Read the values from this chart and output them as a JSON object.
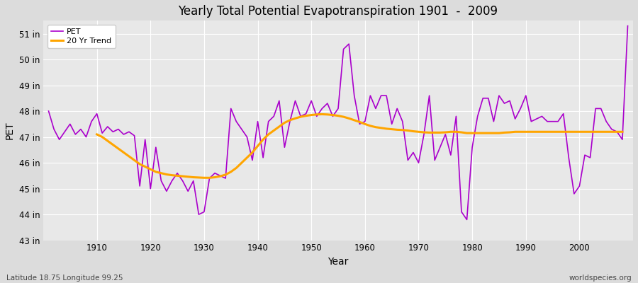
{
  "title": "Yearly Total Potential Evapotranspiration 1901  -  2009",
  "xlabel": "Year",
  "ylabel": "PET",
  "subtitle_left": "Latitude 18.75 Longitude 99.25",
  "subtitle_right": "worldspecies.org",
  "pet_color": "#aa00cc",
  "trend_color": "#ffa500",
  "background_color": "#dcdcdc",
  "plot_bg_color": "#e8e8e8",
  "ylim": [
    43.0,
    51.5
  ],
  "yticks": [
    43,
    44,
    45,
    46,
    47,
    48,
    49,
    50,
    51
  ],
  "xlim": [
    1900,
    2010
  ],
  "xticks": [
    1910,
    1920,
    1930,
    1940,
    1950,
    1960,
    1970,
    1980,
    1990,
    2000
  ],
  "years": [
    1901,
    1902,
    1903,
    1904,
    1905,
    1906,
    1907,
    1908,
    1909,
    1910,
    1911,
    1912,
    1913,
    1914,
    1915,
    1916,
    1917,
    1918,
    1919,
    1920,
    1921,
    1922,
    1923,
    1924,
    1925,
    1926,
    1927,
    1928,
    1929,
    1930,
    1931,
    1932,
    1933,
    1934,
    1935,
    1936,
    1937,
    1938,
    1939,
    1940,
    1941,
    1942,
    1943,
    1944,
    1945,
    1946,
    1947,
    1948,
    1949,
    1950,
    1951,
    1952,
    1953,
    1954,
    1955,
    1956,
    1957,
    1958,
    1959,
    1960,
    1961,
    1962,
    1963,
    1964,
    1965,
    1966,
    1967,
    1968,
    1969,
    1970,
    1971,
    1972,
    1973,
    1974,
    1975,
    1976,
    1977,
    1978,
    1979,
    1980,
    1981,
    1982,
    1983,
    1984,
    1985,
    1986,
    1987,
    1988,
    1989,
    1990,
    1991,
    1992,
    1993,
    1994,
    1995,
    1996,
    1997,
    1998,
    1999,
    2000,
    2001,
    2002,
    2003,
    2004,
    2005,
    2006,
    2007,
    2008,
    2009
  ],
  "pet_values": [
    48.0,
    47.3,
    46.9,
    47.2,
    47.5,
    47.1,
    47.3,
    47.0,
    47.6,
    47.9,
    47.15,
    47.4,
    47.2,
    47.3,
    47.1,
    47.2,
    47.05,
    45.1,
    46.9,
    45.0,
    46.6,
    45.3,
    44.9,
    45.3,
    45.6,
    45.3,
    44.9,
    45.3,
    44.0,
    44.1,
    45.4,
    45.6,
    45.5,
    45.4,
    48.1,
    47.6,
    47.3,
    47.0,
    46.1,
    47.6,
    46.2,
    47.6,
    47.8,
    48.4,
    46.6,
    47.6,
    48.4,
    47.8,
    47.9,
    48.4,
    47.8,
    48.1,
    48.3,
    47.8,
    48.1,
    50.4,
    50.6,
    48.6,
    47.5,
    47.6,
    48.6,
    48.1,
    48.6,
    48.6,
    47.5,
    48.1,
    47.6,
    46.1,
    46.4,
    46.0,
    47.1,
    48.6,
    46.1,
    46.6,
    47.1,
    46.3,
    47.8,
    44.1,
    43.8,
    46.6,
    47.8,
    48.5,
    48.5,
    47.6,
    48.6,
    48.3,
    48.4,
    47.7,
    48.1,
    48.6,
    47.6,
    47.7,
    47.8,
    47.6,
    47.6,
    47.6,
    47.9,
    46.2,
    44.8,
    45.1,
    46.3,
    46.2,
    48.1,
    48.1,
    47.6,
    47.3,
    47.2,
    46.9,
    51.3
  ],
  "trend_values": [
    null,
    null,
    null,
    null,
    null,
    null,
    null,
    null,
    null,
    47.1,
    47.0,
    46.85,
    46.7,
    46.55,
    46.4,
    46.25,
    46.1,
    45.95,
    45.85,
    45.75,
    45.65,
    45.6,
    45.55,
    45.52,
    45.5,
    45.48,
    45.46,
    45.44,
    45.43,
    45.42,
    45.42,
    45.44,
    45.48,
    45.54,
    45.65,
    45.8,
    46.0,
    46.2,
    46.4,
    46.65,
    46.9,
    47.1,
    47.25,
    47.4,
    47.55,
    47.65,
    47.72,
    47.78,
    47.82,
    47.85,
    47.87,
    47.88,
    47.87,
    47.85,
    47.82,
    47.78,
    47.72,
    47.65,
    47.58,
    47.5,
    47.43,
    47.38,
    47.35,
    47.32,
    47.3,
    47.28,
    47.27,
    47.25,
    47.22,
    47.2,
    47.18,
    47.17,
    47.17,
    47.17,
    47.18,
    47.2,
    47.2,
    47.18,
    47.15,
    47.15,
    47.15,
    47.15,
    47.15,
    47.15,
    47.15,
    47.17,
    47.18,
    47.2,
    47.2,
    47.2,
    47.2,
    47.2,
    47.2,
    47.2,
    47.2,
    47.2,
    47.2,
    47.2,
    47.2,
    47.2,
    47.2,
    47.2,
    47.2,
    47.2,
    47.2,
    47.2,
    47.2,
    47.2
  ]
}
